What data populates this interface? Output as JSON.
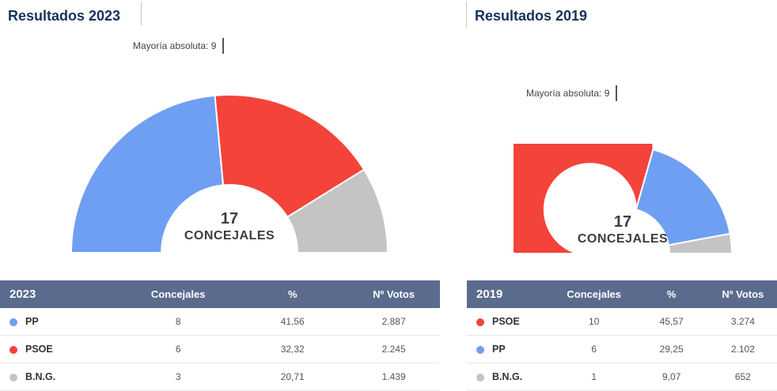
{
  "colors": {
    "pp": "#6e9ff2",
    "psoe": "#f4433a",
    "bng": "#c4c4c4",
    "table_header_bg": "#5a6b8e",
    "title_text": "#16325c"
  },
  "chart_data": [
    {
      "type": "pie",
      "variant": "half-donut",
      "title": "Resultados 2023",
      "majority_label": "Mayoría absoluta: 9",
      "majority": 9,
      "total_seats": 17,
      "center_value": "17",
      "center_label": "CONCEJALES",
      "table_headers": [
        "2023",
        "Concejales",
        "%",
        "Nº Votos"
      ],
      "series": [
        {
          "name": "PP",
          "color": "#6e9ff2",
          "seats": 8,
          "pct": "41,56",
          "votes": "2.887"
        },
        {
          "name": "PSOE",
          "color": "#f4433a",
          "seats": 6,
          "pct": "32,32",
          "votes": "2.245"
        },
        {
          "name": "B.N.G.",
          "color": "#c4c4c4",
          "seats": 3,
          "pct": "20,71",
          "votes": "1.439"
        }
      ]
    },
    {
      "type": "pie",
      "variant": "half-donut",
      "title": "Resultados 2019",
      "majority_label": "Mayoría absoluta: 9",
      "majority": 9,
      "total_seats": 17,
      "center_value": "17",
      "center_label": "CONCEJALES",
      "table_headers": [
        "2019",
        "Concejales",
        "%",
        "Nº Votos"
      ],
      "series": [
        {
          "name": "PSOE",
          "color": "#f4433a",
          "seats": 10,
          "pct": "45,57",
          "votes": "3.274"
        },
        {
          "name": "PP",
          "color": "#6e9ff2",
          "seats": 6,
          "pct": "29,25",
          "votes": "2.102"
        },
        {
          "name": "B.N.G.",
          "color": "#c4c4c4",
          "seats": 1,
          "pct": "9,07",
          "votes": "652"
        }
      ]
    }
  ]
}
